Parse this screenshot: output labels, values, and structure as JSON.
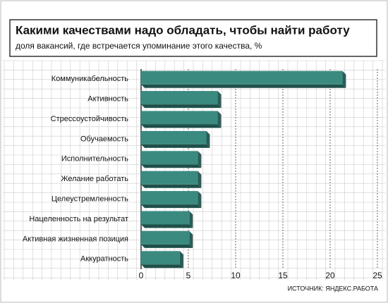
{
  "chart_data": {
    "type": "bar",
    "orientation": "horizontal",
    "title": "Какими качествами надо обладать, чтобы найти работу",
    "subtitle": "доля вакансий, где встречается упоминание этого качества, %",
    "source": "ИСТОЧНИК: ЯНДЕКС.РАБОТА",
    "categories": [
      "Коммуникабельность",
      "Активность",
      "Стрессоустойчивость",
      "Обучаемость",
      "Исполнительность",
      "Желание работать",
      "Целеустремленность",
      "Нацеленность на результат",
      "Активная жизненная позиция",
      "Аккуратность"
    ],
    "values": [
      21.3,
      8.1,
      8.1,
      6.9,
      6.0,
      6.0,
      6.0,
      5.1,
      5.1,
      4.1
    ],
    "color": "#3b8a80",
    "xlim": [
      0,
      25
    ],
    "xticks": [
      0,
      5,
      10,
      15,
      20,
      25
    ],
    "grid": true
  }
}
